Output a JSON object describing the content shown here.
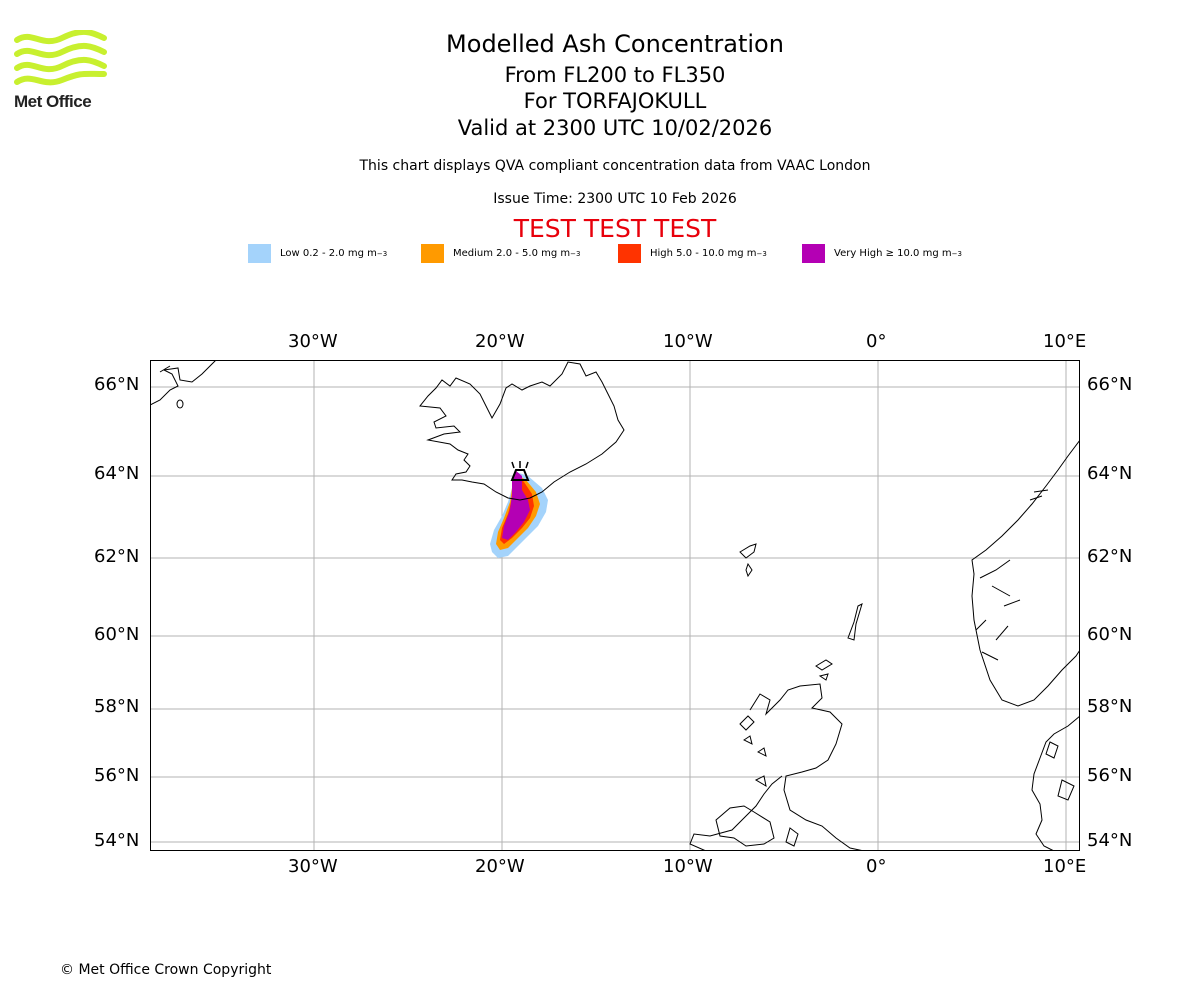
{
  "header": {
    "title": "Modelled Ash Concentration",
    "subtitle_levels": "From FL200 to FL350",
    "subtitle_volcano": "For TORFAJOKULL",
    "subtitle_valid": "Valid at 2300 UTC 10/02/2026",
    "disclaimer": "This chart displays QVA compliant concentration data from VAAC London",
    "issue_time": "Issue Time: 2300 UTC 10 Feb 2026",
    "test_banner": "TEST TEST TEST"
  },
  "logo": {
    "text": "Met Office",
    "color": "#c8f02f"
  },
  "legend": [
    {
      "label": "Low 0.2 - 2.0 mg m",
      "sup": "−3",
      "color": "#a4d3fb"
    },
    {
      "label": "Medium 2.0 - 5.0 mg m",
      "sup": "−3",
      "color": "#ff9a00"
    },
    {
      "label": "High 5.0 - 10.0 mg m",
      "sup": "−3",
      "color": "#ff3300"
    },
    {
      "label": "Very High ≥ 10.0 mg m",
      "sup": "−3",
      "color": "#b400b4"
    }
  ],
  "map": {
    "lon_ticks": [
      "30°W",
      "20°W",
      "10°W",
      "0°",
      "10°E"
    ],
    "lat_ticks": [
      "66°N",
      "64°N",
      "62°N",
      "60°N",
      "58°N",
      "56°N",
      "54°N"
    ],
    "lon_values": [
      -30,
      -20,
      -10,
      0,
      10
    ],
    "lat_values": [
      66,
      64,
      62,
      60,
      58,
      56,
      54
    ],
    "volcano": {
      "name": "TORFAJOKULL",
      "lon": -19.1,
      "lat": 63.9
    }
  },
  "footer": {
    "copyright": "© Met Office Crown Copyright"
  }
}
